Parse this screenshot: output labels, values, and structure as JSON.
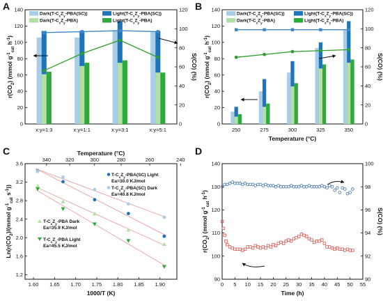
{
  "colors": {
    "dark_sc": "#a7cde8",
    "light_sc": "#1f73ba",
    "dark_pba": "#b2e0a5",
    "light_pba": "#2eaa3c",
    "s_sc": "#3d86c8",
    "s_pba": "#2c9e2c",
    "fit_line": "#e8a0a0",
    "panel_d_rate": "#d9534f",
    "panel_d_s": "#3e6fb0"
  },
  "chart_data": [
    {
      "panel": "A",
      "type": "bar",
      "categories": [
        "x:y=1:3",
        "x:y=1:1",
        "x:y=3:1",
        "x:y=5:1"
      ],
      "ylabel": "r(CO2) (mmol gcat-1 h-1)",
      "y2label": "S(CO) (%)",
      "ylim": [
        0,
        140
      ],
      "y2lim": [
        0,
        120
      ],
      "yticks": [
        "0",
        "20",
        "40",
        "60",
        "80",
        "100",
        "120",
        "140"
      ],
      "y2ticks": [
        "0",
        "20",
        "40",
        "60",
        "80",
        "100",
        "120"
      ],
      "series": [
        {
          "name": "Dark(T-CxZy-PBA(SC))",
          "values": [
            106,
            106,
            115,
            113
          ]
        },
        {
          "name": "Light(T-CxZy-PBA(SC))",
          "values": [
            114,
            114,
            126,
            114
          ]
        },
        {
          "name": "Dark(T-CxZy-PBA)",
          "values": [
            61,
            71,
            75,
            63
          ]
        },
        {
          "name": "Light(T-CxZy-PBA)",
          "values": [
            64,
            75,
            78,
            63
          ]
        }
      ],
      "selectivity": [
        {
          "name": "S(CO) SC",
          "values": [
            96,
            97,
            98,
            97
          ]
        },
        {
          "name": "S(CO) PBA",
          "values": [
            56,
            74,
            88,
            70
          ]
        }
      ]
    },
    {
      "panel": "B",
      "type": "bar",
      "categories": [
        "250",
        "275",
        "300",
        "325",
        "350"
      ],
      "xlabel": "Temperature (°C)",
      "ylabel": "r(CO2) (mmol gcat-1 h-1)",
      "y2label": "S(CO) (%)",
      "ylim": [
        0,
        140
      ],
      "y2lim": [
        0,
        120
      ],
      "yticks": [
        "0",
        "20",
        "40",
        "60",
        "80",
        "100",
        "120",
        "140"
      ],
      "y2ticks": [
        "0",
        "20",
        "40",
        "60",
        "80",
        "100",
        "120"
      ],
      "series": [
        {
          "name": "Dark(T-CxZy-PBA(SC))",
          "values": [
            15,
            40,
            63,
            93,
            115
          ]
        },
        {
          "name": "Light(T-CxZy-PBA(SC))",
          "values": [
            21,
            55,
            77,
            100,
            126
          ]
        },
        {
          "name": "Dark(T-CxZy-PBA)",
          "values": [
            9,
            21,
            46,
            68,
            75
          ]
        },
        {
          "name": "Light(T-CxZy-PBA)",
          "values": [
            12,
            25,
            50,
            73,
            79
          ]
        }
      ],
      "selectivity": [
        {
          "name": "S(CO) SC",
          "values": [
            99,
            99,
            99,
            99,
            99
          ]
        },
        {
          "name": "S(CO) PBA",
          "values": [
            70,
            73,
            76,
            77,
            78
          ]
        }
      ]
    },
    {
      "panel": "C",
      "type": "scatter",
      "xlabel": "1000/T (K)",
      "x2label": "Temperature (°C)",
      "ylabel": "Ln(r(CO2)/(mmol gcat-1 s-1))",
      "xlim": [
        1.58,
        1.94
      ],
      "ylim": [
        1.1,
        3.6
      ],
      "xticks": [
        "1.60",
        "1.65",
        "1.70",
        "1.75",
        "1.80",
        "1.85",
        "1.90"
      ],
      "yticks": [
        "1.2",
        "1.6",
        "2.0",
        "2.4",
        "2.8",
        "3.2",
        "3.6"
      ],
      "x2ticks": [
        "340",
        "320",
        "300",
        "280",
        "260",
        "240"
      ],
      "series": [
        {
          "name": "T-CxZy-PBA(SC) Light",
          "ea": "Ea=30.0 KJ/mol",
          "x": [
            1.61,
            1.67,
            1.745,
            1.825,
            1.91
          ],
          "y": [
            3.45,
            3.21,
            2.82,
            2.52,
            2.03
          ]
        },
        {
          "name": "T-CxZy-PBA(SC) Dark",
          "ea": "Ea=40.8 KJ/mol",
          "x": [
            1.61,
            1.67,
            1.745,
            1.825,
            1.91
          ],
          "y": [
            3.43,
            3.31,
            3.04,
            2.73,
            2.44
          ]
        },
        {
          "name": "T-CxZy-PBA Dark",
          "ea": "Ea=35.9 KJ/mol",
          "x": [
            1.61,
            1.67,
            1.745,
            1.825,
            1.91
          ],
          "y": [
            3.12,
            2.78,
            2.52,
            2.17,
            1.86
          ]
        },
        {
          "name": "T-CxZy-PBA Light",
          "ea": "Ea=45.5 KJ/mol",
          "x": [
            1.61,
            1.67,
            1.745,
            1.825,
            1.91
          ],
          "y": [
            3.05,
            2.62,
            2.29,
            1.93,
            1.37
          ]
        }
      ]
    },
    {
      "panel": "D",
      "type": "scatter",
      "xlabel": "Time (h)",
      "ylabel": "r(CO2) (mmol gcat-1 h-1)",
      "y2label": "S(CO) (%)",
      "xlim": [
        0,
        55
      ],
      "ylim": [
        90,
        140
      ],
      "y2lim": [
        90,
        100
      ],
      "xticks": [
        "0",
        "5",
        "10",
        "15",
        "20",
        "25",
        "30",
        "35",
        "40",
        "45",
        "50",
        "55"
      ],
      "yticks": [
        "90",
        "100",
        "110",
        "120",
        "130",
        "140"
      ],
      "y2ticks": [
        "90",
        "92",
        "94",
        "96",
        "98",
        "100"
      ],
      "series": [
        {
          "name": "r(CO2)",
          "x": [
            0,
            0.5,
            1,
            1.5,
            2,
            3,
            4,
            5,
            6,
            7,
            8,
            9,
            10,
            11,
            12,
            13,
            14,
            15,
            16,
            17,
            18,
            19,
            20,
            21,
            22,
            23,
            24,
            25,
            26,
            27,
            28,
            29,
            30,
            31,
            32,
            33,
            34,
            35,
            36,
            37,
            38,
            39,
            40,
            41,
            42,
            43,
            44,
            45,
            46,
            47,
            48,
            49,
            50,
            51
          ],
          "y": [
            115,
            112,
            109,
            106.5,
            105,
            104,
            103.5,
            103,
            103,
            103,
            102.5,
            103,
            104,
            104,
            103.5,
            104.5,
            104,
            103.5,
            104,
            103.5,
            104.5,
            104,
            105,
            104.5,
            105.5,
            106,
            105.5,
            106.5,
            107,
            106.5,
            107.5,
            108,
            108.5,
            109.5,
            109,
            108.5,
            107.5,
            107,
            106,
            106.5,
            106.5,
            107,
            105.5,
            104,
            104,
            103.5,
            103,
            103.5,
            103,
            103,
            102.5,
            103,
            102.5,
            102.5
          ]
        },
        {
          "name": "S(CO)",
          "x": [
            0,
            1,
            2,
            3,
            4,
            5,
            6,
            7,
            8,
            9,
            10,
            11,
            12,
            13,
            14,
            15,
            16,
            17,
            18,
            19,
            20,
            21,
            22,
            23,
            24,
            25,
            26,
            27,
            28,
            29,
            30,
            31,
            32,
            33,
            34,
            35,
            36,
            37,
            38,
            39,
            40,
            41,
            42,
            43,
            44,
            45,
            46,
            47,
            48,
            49,
            50,
            51
          ],
          "y": [
            98.0,
            98.2,
            98.2,
            98.3,
            98.4,
            98.3,
            98.3,
            98.3,
            98.2,
            98.3,
            98.2,
            98.2,
            98.2,
            98.1,
            98.2,
            98.2,
            98.1,
            98.2,
            98.1,
            98.1,
            98.1,
            98.0,
            98.1,
            98.0,
            98.0,
            98.0,
            98.0,
            98.1,
            98.0,
            98.0,
            98.0,
            98.1,
            98.0,
            98.0,
            98.1,
            98.0,
            98.0,
            98.0,
            98.0,
            98.1,
            98.0,
            97.9,
            98.1,
            98.0,
            97.7,
            97.9,
            97.5,
            97.9,
            97.8,
            97.4,
            97.5,
            97.8
          ]
        }
      ]
    }
  ]
}
